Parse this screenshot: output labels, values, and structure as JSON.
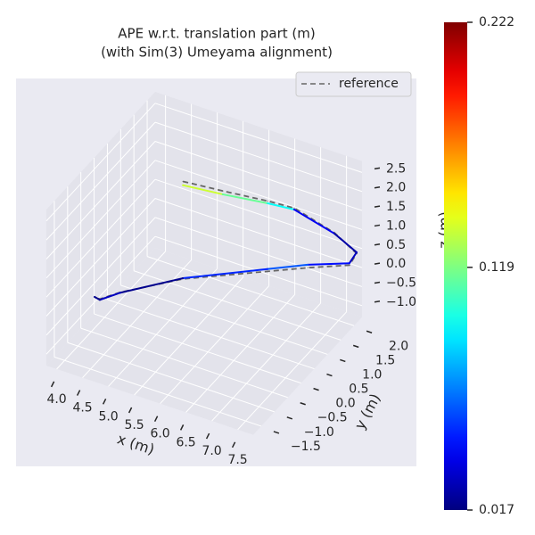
{
  "chart_data": {
    "type": "line3d",
    "title": "APE w.r.t. translation part (m)",
    "subtitle": "(with Sim(3) Umeyama alignment)",
    "xlabel": "x (m)",
    "ylabel": "y (m)",
    "zlabel": "z (m)",
    "xlim": [
      3.8,
      7.8
    ],
    "ylim": [
      -1.8,
      2.3
    ],
    "zlim": [
      -1.3,
      2.8
    ],
    "xticks": [
      {
        "value": 4,
        "label": "4.0"
      },
      4.5,
      {
        "value": 5,
        "label": "5.0"
      },
      5.5,
      {
        "value": 6,
        "label": "6.0"
      },
      6.5,
      {
        "value": 7,
        "label": "7.0"
      },
      7.5
    ],
    "yticks": [
      {
        "value": -1.5,
        "label": "−1.5"
      },
      {
        "value": -1,
        "label": "−1.0"
      },
      {
        "value": -0.5,
        "label": "−0.5"
      },
      {
        "value": 0,
        "label": "0.0"
      },
      0.5,
      {
        "value": 1,
        "label": "1.0"
      },
      1.5,
      {
        "value": 2,
        "label": "2.0"
      }
    ],
    "zticks": [
      {
        "value": -1,
        "label": "−1.0"
      },
      {
        "value": -0.5,
        "label": "−0.5"
      },
      {
        "value": 0,
        "label": "0.0"
      },
      0.5,
      {
        "value": 1,
        "label": "1.0"
      },
      1.5,
      {
        "value": 2,
        "label": "2.0"
      },
      2.5
    ],
    "grid": true,
    "legend": "upper right",
    "series": [
      {
        "name": "reference",
        "color": "#666666",
        "style": "dashed",
        "x": [
          5.21,
          5.98,
          6.85,
          7.26,
          7.68,
          7.85,
          7.71,
          7.52,
          6.74,
          5.36,
          4.31,
          3.91,
          3.81
        ],
        "y": [
          0.6,
          0.6,
          0.6,
          0.8,
          1.5,
          2.0,
          2.0,
          0.8,
          0.8,
          0.3,
          0,
          0,
          0
        ],
        "z": [
          2.37,
          2.47,
          2.6,
          2.45,
          1.46,
          0.62,
          0.25,
          1.0,
          0.55,
          0.1,
          -0.5,
          -0.86,
          -0.84
        ]
      },
      {
        "colormap": "jet",
        "x": [
          5.21,
          5.98,
          6.85,
          7.26,
          7.68,
          7.85,
          7.71,
          7.52,
          6.74,
          5.36,
          4.31,
          3.91,
          3.81
        ],
        "y": [
          0.6,
          0.6,
          0.6,
          0.8,
          1.5,
          2.0,
          2.0,
          0.8,
          0.8,
          0.3,
          0,
          0,
          0
        ],
        "z": [
          2.27,
          2.38,
          2.54,
          2.41,
          1.44,
          0.65,
          0.3,
          1.08,
          0.61,
          0.12,
          -0.51,
          -0.88,
          -0.85
        ],
        "error": [
          0.135,
          0.115,
          0.095,
          0.04,
          0.025,
          0.03,
          0.045,
          0.06,
          0.05,
          0.02,
          0.03,
          0.02,
          0.02
        ]
      }
    ],
    "colorbar": {
      "clim": [
        0.017,
        0.222
      ],
      "ticks": [
        0.017,
        0.119,
        0.222
      ]
    }
  }
}
